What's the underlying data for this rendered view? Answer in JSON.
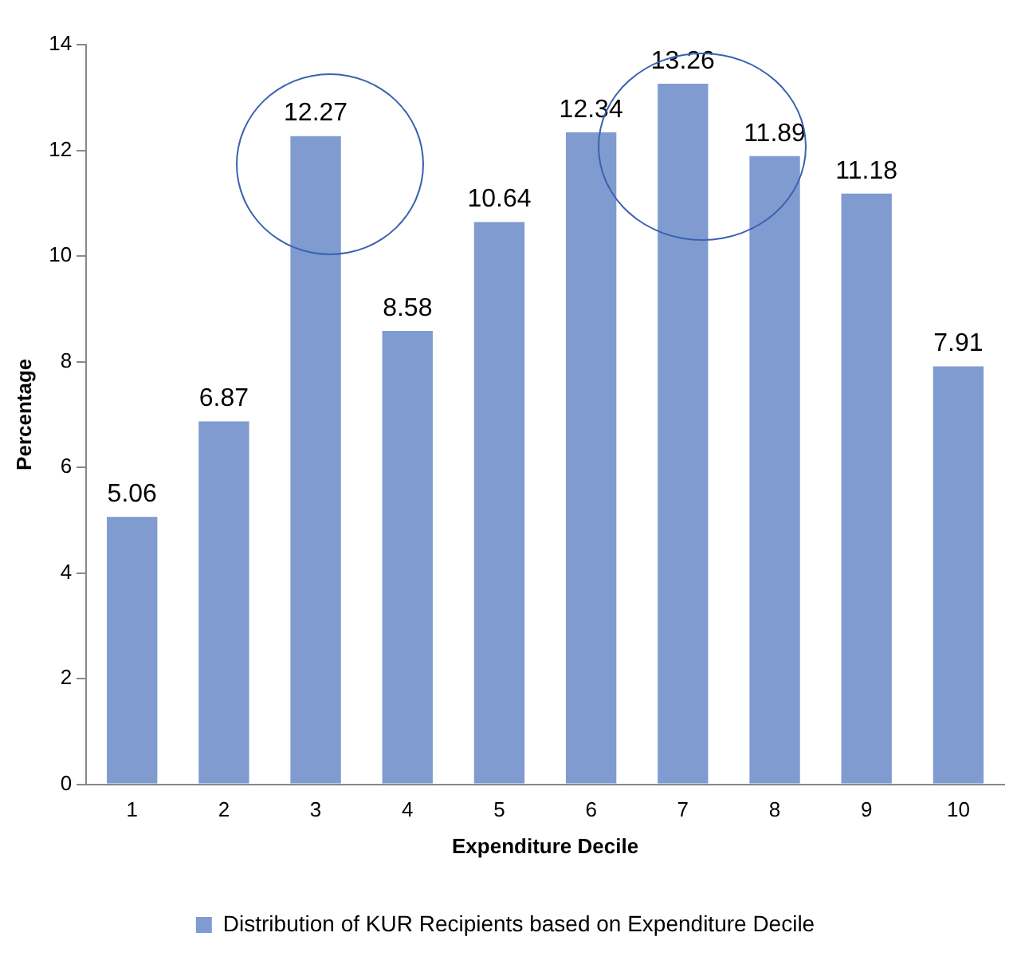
{
  "chart_data": {
    "type": "bar",
    "xlabel": "Expenditure Decile",
    "ylabel": "Percentage",
    "categories": [
      "1",
      "2",
      "3",
      "4",
      "5",
      "6",
      "7",
      "8",
      "9",
      "10"
    ],
    "series": [
      {
        "name": "Distribution of KUR Recipients based on Expenditure Decile",
        "color": "#7f9bd0",
        "values": [
          5.06,
          6.87,
          12.27,
          8.58,
          10.64,
          12.34,
          13.26,
          11.89,
          11.18,
          7.91
        ]
      }
    ],
    "ylim": [
      0,
      14
    ],
    "yticks": [
      0,
      2,
      4,
      6,
      8,
      10,
      12,
      14
    ],
    "grid": false,
    "legend": "bottom",
    "data_labels": true
  }
}
